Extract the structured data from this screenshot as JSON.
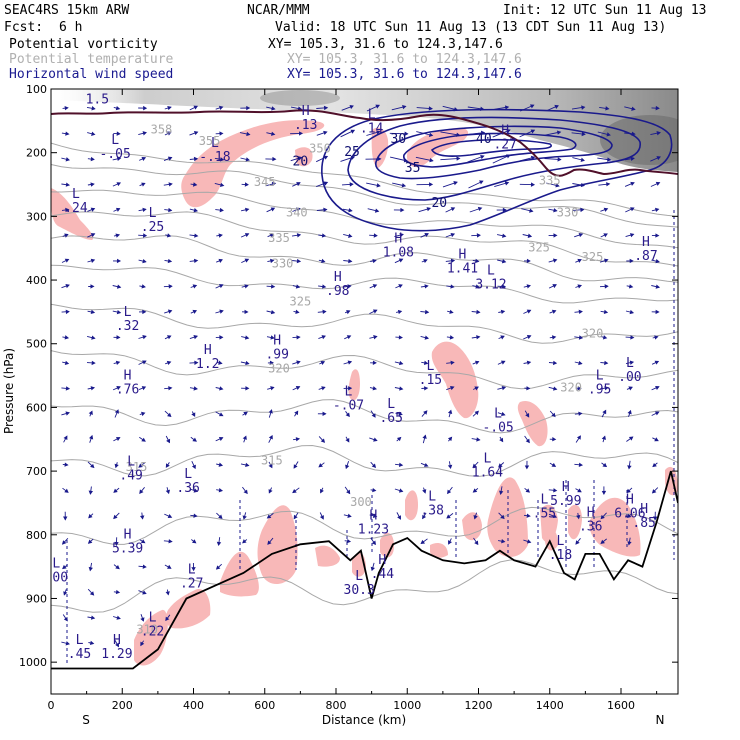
{
  "header": {
    "title": "SEAC4RS 15km ARW",
    "center": "NCAR/MMM",
    "init": "Init: 12 UTC Sun 11 Aug 13",
    "fcst_label": "Fcst:",
    "fcst_value": "6 h",
    "valid": "Valid: 18 UTC Sun 11 Aug 13 (13 CDT Sun 11 Aug 13)",
    "fields": [
      {
        "name": "Potential vorticity",
        "xy": "XY= 105.3, 31.6 to 124.3,147.6",
        "color": "#000000"
      },
      {
        "name": "Potential temperature",
        "xy": "XY= 105.3, 31.6 to 124.3,147.6",
        "color": "#b0b0b0"
      },
      {
        "name": "Horizontal wind speed",
        "xy": "XY= 105.3, 31.6 to 124.3,147.6",
        "color": "#1a1a90"
      }
    ]
  },
  "colors": {
    "pv_shade": "#f8b8b8",
    "theta": "#a8a8a8",
    "wind": "#1a1a8c",
    "terrain": "#000000",
    "tropopause": "#50102a"
  },
  "chart_data": {
    "type": "contour",
    "xlabel": "Distance (km)",
    "ylabel": "Pressure (hPa)",
    "xlim": [
      0,
      1760
    ],
    "ylim": [
      1050,
      100
    ],
    "x_ticks": [
      "0",
      "200",
      "400",
      "600",
      "800",
      "1000",
      "1200",
      "1400",
      "1600"
    ],
    "y_ticks": [
      "100",
      "200",
      "300",
      "400",
      "500",
      "600",
      "700",
      "800",
      "900",
      "1000"
    ],
    "endpoint_labels": {
      "left": "S",
      "right": "N"
    },
    "terrain_profile": [
      [
        0,
        1010
      ],
      [
        230,
        1010
      ],
      [
        300,
        980
      ],
      [
        380,
        900
      ],
      [
        460,
        880
      ],
      [
        540,
        860
      ],
      [
        620,
        830
      ],
      [
        700,
        815
      ],
      [
        780,
        810
      ],
      [
        840,
        840
      ],
      [
        870,
        825
      ],
      [
        900,
        900
      ],
      [
        920,
        860
      ],
      [
        960,
        815
      ],
      [
        1000,
        805
      ],
      [
        1040,
        825
      ],
      [
        1100,
        840
      ],
      [
        1160,
        845
      ],
      [
        1220,
        840
      ],
      [
        1260,
        825
      ],
      [
        1300,
        840
      ],
      [
        1360,
        850
      ],
      [
        1400,
        810
      ],
      [
        1440,
        860
      ],
      [
        1470,
        870
      ],
      [
        1500,
        830
      ],
      [
        1540,
        830
      ],
      [
        1580,
        870
      ],
      [
        1620,
        840
      ],
      [
        1660,
        850
      ],
      [
        1700,
        780
      ],
      [
        1740,
        700
      ],
      [
        1760,
        750
      ]
    ],
    "theta_labels": [
      {
        "text": "350",
        "x": 755,
        "p": 200
      },
      {
        "text": "345",
        "x": 600,
        "p": 252
      },
      {
        "text": "340",
        "x": 690,
        "p": 300
      },
      {
        "text": "335",
        "x": 640,
        "p": 340
      },
      {
        "text": "330",
        "x": 650,
        "p": 380
      },
      {
        "text": "325",
        "x": 700,
        "p": 440
      },
      {
        "text": "320",
        "x": 640,
        "p": 545
      },
      {
        "text": "315",
        "x": 620,
        "p": 690
      },
      {
        "text": "315",
        "x": 240,
        "p": 700
      },
      {
        "text": "310",
        "x": 270,
        "p": 955
      },
      {
        "text": "300",
        "x": 870,
        "p": 755
      },
      {
        "text": "335",
        "x": 1400,
        "p": 250
      },
      {
        "text": "330",
        "x": 1450,
        "p": 300
      },
      {
        "text": "325",
        "x": 1370,
        "p": 355
      },
      {
        "text": "325",
        "x": 1520,
        "p": 370
      },
      {
        "text": "320",
        "x": 1520,
        "p": 490
      },
      {
        "text": "320",
        "x": 1460,
        "p": 575
      },
      {
        "text": "358",
        "x": 310,
        "p": 170
      },
      {
        "text": "355",
        "x": 445,
        "p": 188
      }
    ],
    "wind_speed_labels": [
      {
        "text": "20",
        "x": 700,
        "p": 220
      },
      {
        "text": "25",
        "x": 845,
        "p": 205
      },
      {
        "text": "30",
        "x": 975,
        "p": 185
      },
      {
        "text": "35",
        "x": 1015,
        "p": 230
      },
      {
        "text": "40",
        "x": 1215,
        "p": 185
      },
      {
        "text": "20",
        "x": 1090,
        "p": 285
      }
    ],
    "pv_extrema": [
      {
        "kind": "L",
        "value": "1.5",
        "x": 130,
        "p": 120
      },
      {
        "kind": "L",
        "value": "-.05",
        "x": 180,
        "p": 205
      },
      {
        "kind": "L",
        "value": "-.18",
        "x": 460,
        "p": 210
      },
      {
        "kind": "L",
        "value": ".24",
        "x": 70,
        "p": 290
      },
      {
        "kind": "L",
        "value": ".25",
        "x": 285,
        "p": 320
      },
      {
        "kind": "H",
        "value": ".13",
        "x": 715,
        "p": 160
      },
      {
        "kind": "L",
        "value": ".14",
        "x": 900,
        "p": 165
      },
      {
        "kind": "H",
        "value": ".27",
        "x": 1275,
        "p": 190
      },
      {
        "kind": "H",
        "value": "1.08",
        "x": 975,
        "p": 360
      },
      {
        "kind": "H",
        "value": "1.41",
        "x": 1155,
        "p": 385
      },
      {
        "kind": "L",
        "value": "3.12",
        "x": 1235,
        "p": 410
      },
      {
        "kind": "H",
        "value": ".98",
        "x": 805,
        "p": 420
      },
      {
        "kind": "H",
        "value": ".87",
        "x": 1670,
        "p": 365
      },
      {
        "kind": "L",
        "value": ".32",
        "x": 215,
        "p": 475
      },
      {
        "kind": "H",
        "value": "1.2",
        "x": 440,
        "p": 535
      },
      {
        "kind": "H",
        "value": ".99",
        "x": 635,
        "p": 520
      },
      {
        "kind": "H",
        "value": ".76",
        "x": 215,
        "p": 575
      },
      {
        "kind": "L",
        "value": "-.07",
        "x": 835,
        "p": 600
      },
      {
        "kind": "L",
        "value": ".15",
        "x": 1065,
        "p": 560
      },
      {
        "kind": "L",
        "value": ".00",
        "x": 1625,
        "p": 555
      },
      {
        "kind": "L",
        "value": ".95",
        "x": 1540,
        "p": 575
      },
      {
        "kind": "L",
        "value": ".65",
        "x": 955,
        "p": 620
      },
      {
        "kind": "L",
        "value": "-.05",
        "x": 1255,
        "p": 635
      },
      {
        "kind": "L",
        "value": ".49",
        "x": 225,
        "p": 710
      },
      {
        "kind": "L",
        "value": ".36",
        "x": 385,
        "p": 730
      },
      {
        "kind": "L",
        "value": "1.64",
        "x": 1225,
        "p": 705
      },
      {
        "kind": "H",
        "value": "5.99",
        "x": 1445,
        "p": 750
      },
      {
        "kind": "L",
        "value": ".55",
        "x": 1385,
        "p": 770
      },
      {
        "kind": "L",
        "value": ".38",
        "x": 1070,
        "p": 765
      },
      {
        "kind": "H",
        "value": ".36",
        "x": 1515,
        "p": 790
      },
      {
        "kind": "H",
        "value": "6.06",
        "x": 1625,
        "p": 770
      },
      {
        "kind": "H",
        "value": ".85",
        "x": 1665,
        "p": 785
      },
      {
        "kind": "H",
        "value": "1.23",
        "x": 905,
        "p": 795
      },
      {
        "kind": "H",
        "value": "5.39",
        "x": 215,
        "p": 825
      },
      {
        "kind": "L",
        "value": ".18",
        "x": 1430,
        "p": 835
      },
      {
        "kind": "H",
        "value": ".44",
        "x": 930,
        "p": 865
      },
      {
        "kind": "L",
        "value": ".00",
        "x": 15,
        "p": 870
      },
      {
        "kind": "L",
        "value": ".27",
        "x": 395,
        "p": 880
      },
      {
        "kind": "L",
        "value": ".22",
        "x": 285,
        "p": 955
      },
      {
        "kind": "L",
        "value": ".45",
        "x": 80,
        "p": 990
      },
      {
        "kind": "H",
        "value": "1.29",
        "x": 185,
        "p": 990
      },
      {
        "kind": "L",
        "value": "30.3",
        "x": 865,
        "p": 890
      }
    ]
  }
}
